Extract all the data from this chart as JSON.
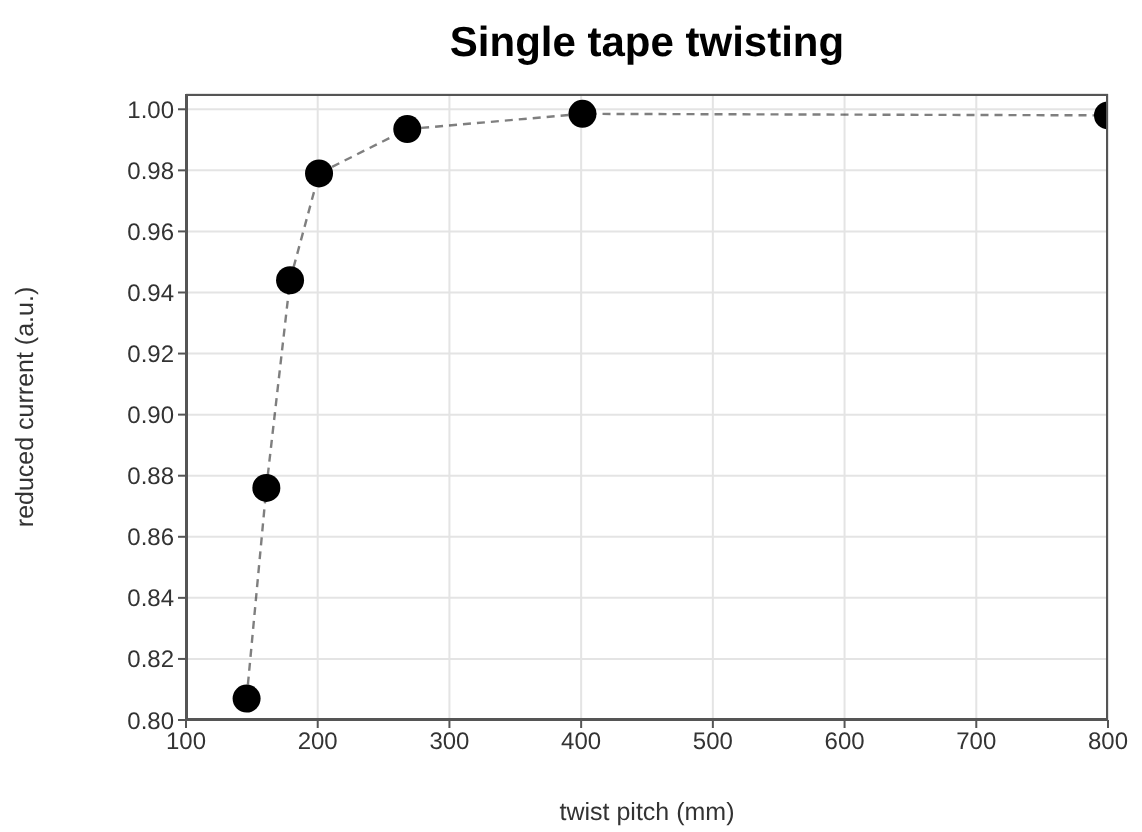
{
  "chart_data": {
    "type": "line",
    "title": "Single tape twisting",
    "xlabel": "twist pitch (mm)",
    "ylabel": "reduced current (a.u.)",
    "x": [
      146,
      161,
      179,
      201,
      268,
      401,
      800
    ],
    "series": [
      {
        "color": "#000000",
        "values": [
          0.807,
          0.876,
          0.944,
          0.979,
          0.9935,
          0.9985,
          0.998
        ]
      }
    ],
    "xlim": [
      100,
      800
    ],
    "xticks": [
      100,
      200,
      300,
      400,
      500,
      600,
      700,
      800
    ],
    "ylim": [
      0.8,
      1.005
    ],
    "yticks": [
      {
        "value": 0.8,
        "label": "0.80"
      },
      {
        "value": 0.82,
        "label": "0.82"
      },
      {
        "value": 0.84,
        "label": "0.84"
      },
      {
        "value": 0.86,
        "label": "0.86"
      },
      {
        "value": 0.88,
        "label": "0.88"
      },
      {
        "value": 0.9,
        "label": "0.90"
      },
      {
        "value": 0.92,
        "label": "0.92"
      },
      {
        "value": 0.94,
        "label": "0.94"
      },
      {
        "value": 0.96,
        "label": "0.96"
      },
      {
        "value": 0.98,
        "label": "0.98"
      },
      {
        "value": 1.0,
        "label": "1.00"
      }
    ],
    "grid": true,
    "legend": false,
    "marker": "circle",
    "line_style": "dashed"
  }
}
